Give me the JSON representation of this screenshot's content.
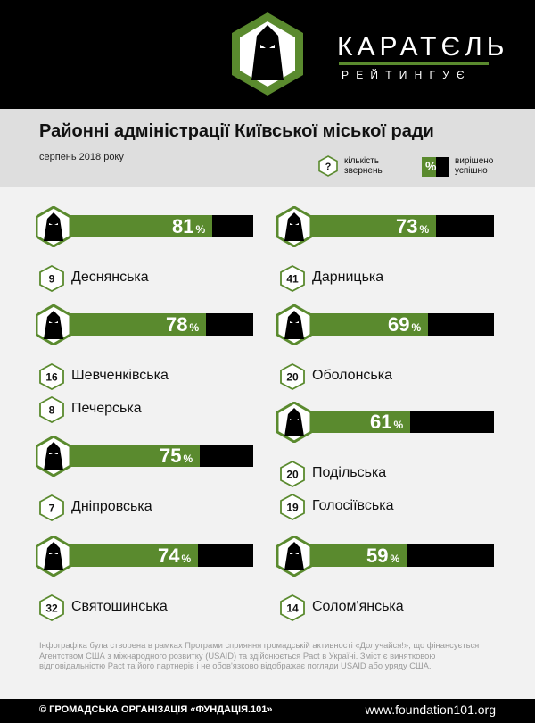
{
  "header": {
    "brand": "КАРАТЄЛЬ",
    "brand_sub": "РЕЙТИНГУЄ"
  },
  "title": "Районні адміністрації Київської міської ради",
  "subtitle": "серпень 2018 року",
  "legend": {
    "count_symbol": "?",
    "count_label_line1": "кількість",
    "count_label_line2": "звернень",
    "pct_symbol": "%",
    "pct_label_line1": "вирішено",
    "pct_label_line2": "успішно"
  },
  "colors": {
    "accent": "#5a8a2e",
    "bar_bg": "#000000",
    "header_bg": "#000000",
    "band_bg": "#dedede",
    "page_bg": "#f2f2f2"
  },
  "chart_data": {
    "type": "bar",
    "value_unit": "%",
    "bars": [
      {
        "value": 81,
        "rows": [
          {
            "count": "9",
            "name": "Деснянська"
          }
        ]
      },
      {
        "value": 73,
        "rows": [
          {
            "count": "41",
            "name": "Дарницька"
          }
        ]
      },
      {
        "value": 78,
        "rows": [
          {
            "count": "16",
            "name": "Шевченківська"
          },
          {
            "count": "8",
            "name": "Печерська"
          }
        ]
      },
      {
        "value": 69,
        "rows": [
          {
            "count": "20",
            "name": "Оболонська"
          }
        ]
      },
      {
        "value": 61,
        "rows": [
          {
            "count": "20",
            "name": "Подільська"
          },
          {
            "count": "19",
            "name": "Голосіївська"
          }
        ]
      },
      {
        "value": 75,
        "rows": [
          {
            "count": "7",
            "name": "Дніпровська"
          }
        ]
      },
      {
        "value": 74,
        "rows": [
          {
            "count": "32",
            "name": "Святошинська"
          }
        ]
      },
      {
        "value": 59,
        "rows": [
          {
            "count": "14",
            "name": "Солом'янська"
          }
        ]
      }
    ]
  },
  "note": "Інфографіка була створена в рамках Програми сприяння громадській активності «Долучайся!», що фінансується Агентством США з міжнародного розвитку (USAID) та здійснюється Pact в Україні. Зміст є винятковою відповідальністю Pact та його партнерів і не обов'язково відображає погляди USAID або уряду США.",
  "footer": {
    "left": "© ГРОМАДСЬКА ОРГАНІЗАЦІЯ «ФУНДАЦІЯ.101»",
    "right": "www.foundation101.org"
  }
}
